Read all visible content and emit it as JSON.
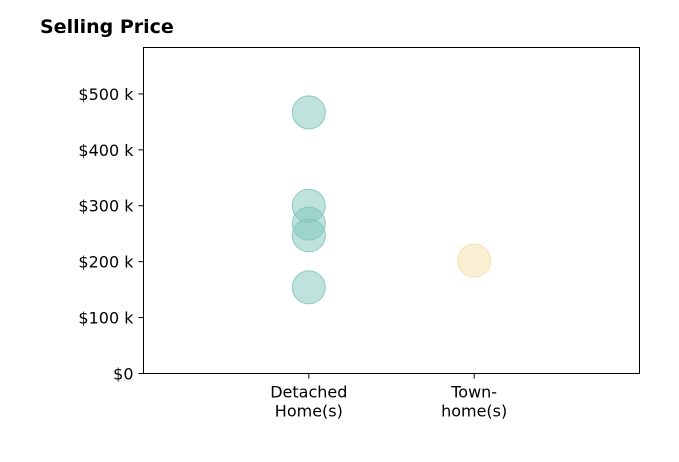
{
  "chart_data": {
    "type": "scatter",
    "title": "Selling Price",
    "categories": [
      "Detached\nHome(s)",
      "Town-\nhome(s)"
    ],
    "series": [
      {
        "category": "Detached\nHome(s)",
        "color": "#80c6bc",
        "values": [
          467000,
          300000,
          268000,
          247000,
          154000
        ]
      },
      {
        "category": "Town-\nhome(s)",
        "color": "#f5dfa8",
        "values": [
          202000
        ]
      }
    ],
    "yticks": [
      "$0",
      "$100 k",
      "$200 k",
      "$300 k",
      "$400 k",
      "$500 k"
    ],
    "ylim": [
      0,
      583000
    ],
    "xlim": [
      -1,
      2
    ],
    "grid": false
  }
}
